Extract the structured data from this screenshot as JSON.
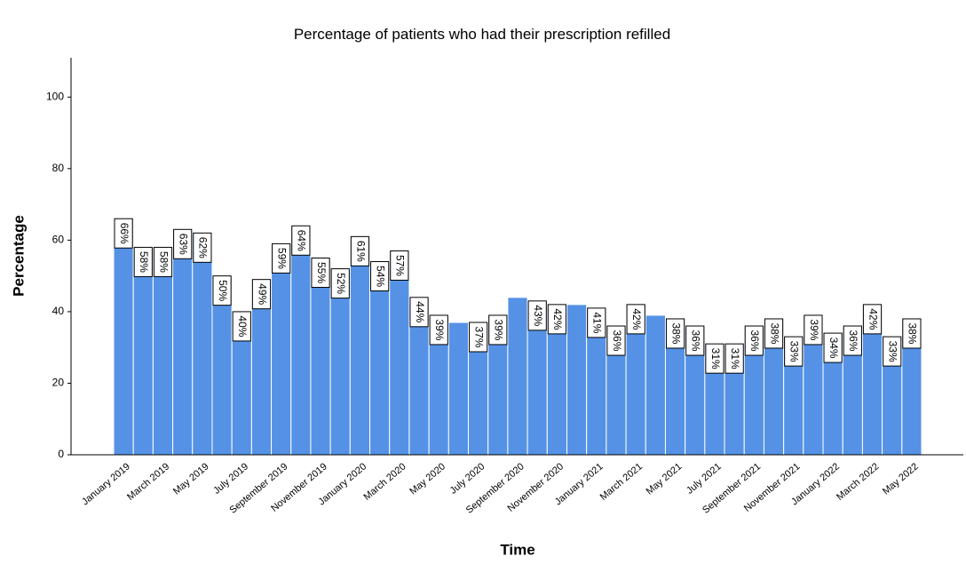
{
  "chart_data": {
    "type": "bar",
    "title": "Percentage of patients who had their prescription refilled",
    "x_label": "Time",
    "y_label": "Percentage",
    "categories": [
      "January 2019",
      null,
      "March 2019",
      null,
      "May 2019",
      null,
      "July 2019",
      null,
      "September 2019",
      null,
      "November 2019",
      null,
      "January 2020",
      null,
      "March 2020",
      null,
      "May 2020",
      null,
      "July 2020",
      null,
      "September 2020",
      null,
      "November 2020",
      null,
      "January 2021",
      null,
      "March 2021",
      null,
      "May 2021",
      null,
      "July 2021",
      null,
      "September 2021",
      null,
      "November 2021",
      null,
      "January 2022",
      null,
      "March 2022",
      null,
      "May 2022"
    ],
    "values": [
      66,
      58,
      58,
      63,
      62,
      50,
      40,
      49,
      59,
      64,
      55,
      52,
      61,
      54,
      57,
      44,
      39,
      37,
      37,
      39,
      44,
      43,
      42,
      42,
      41,
      36,
      42,
      39,
      38,
      36,
      31,
      31,
      36,
      38,
      33,
      39,
      34,
      36,
      42,
      33,
      38
    ],
    "value_labels": [
      "66%",
      "58%",
      "58%",
      "63%",
      "62%",
      "50%",
      "40%",
      "49%",
      "59%",
      "64%",
      "55%",
      "52%",
      "61%",
      "54%",
      "57%",
      "44%",
      "39%",
      null,
      "37%",
      "39%",
      null,
      "43%",
      "42%",
      null,
      "41%",
      "36%",
      "42%",
      null,
      "38%",
      "36%",
      "31%",
      "31%",
      "36%",
      "38%",
      "33%",
      "39%",
      "34%",
      "36%",
      "42%",
      "33%",
      "38%"
    ],
    "color": "#5592e6",
    "ylim": [
      0,
      111
    ],
    "yticks": [
      0,
      20,
      40,
      60,
      80,
      100
    ],
    "grid": false
  }
}
